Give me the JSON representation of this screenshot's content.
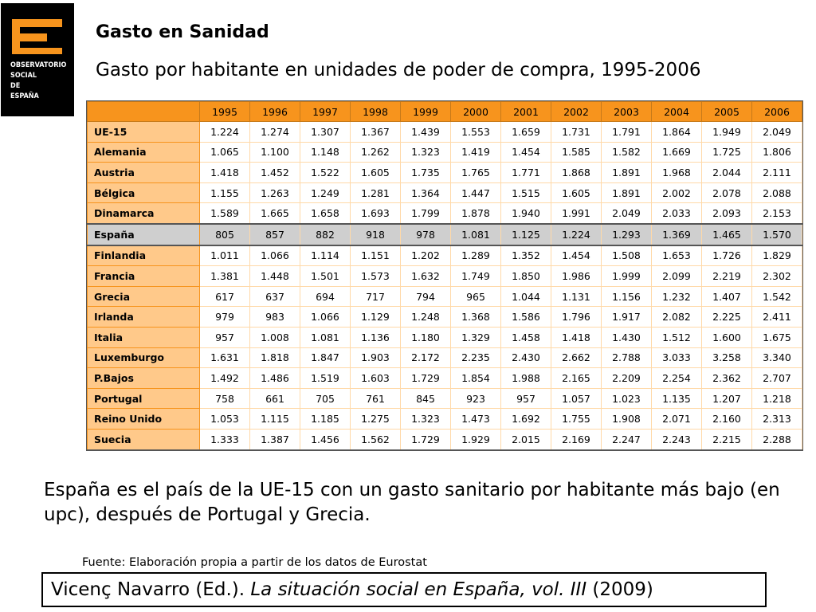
{
  "logo": {
    "lines": [
      "OBSERVATORIO",
      "SOCIAL",
      "DE",
      "ESPAÑA"
    ]
  },
  "title": "Gasto en Sanidad",
  "subtitle": "Gasto por habitante en unidades de poder de compra, 1995-2006",
  "table": {
    "years": [
      "1995",
      "1996",
      "1997",
      "1998",
      "1999",
      "2000",
      "2001",
      "2002",
      "2003",
      "2004",
      "2005",
      "2006"
    ],
    "highlight_country": "España",
    "rows": [
      {
        "country": "UE-15",
        "values": [
          "1.224",
          "1.274",
          "1.307",
          "1.367",
          "1.439",
          "1.553",
          "1.659",
          "1.731",
          "1.791",
          "1.864",
          "1.949",
          "2.049"
        ]
      },
      {
        "country": "Alemania",
        "values": [
          "1.065",
          "1.100",
          "1.148",
          "1.262",
          "1.323",
          "1.419",
          "1.454",
          "1.585",
          "1.582",
          "1.669",
          "1.725",
          "1.806"
        ]
      },
      {
        "country": "Austria",
        "values": [
          "1.418",
          "1.452",
          "1.522",
          "1.605",
          "1.735",
          "1.765",
          "1.771",
          "1.868",
          "1.891",
          "1.968",
          "2.044",
          "2.111"
        ]
      },
      {
        "country": "Bélgica",
        "values": [
          "1.155",
          "1.263",
          "1.249",
          "1.281",
          "1.364",
          "1.447",
          "1.515",
          "1.605",
          "1.891",
          "2.002",
          "2.078",
          "2.088"
        ]
      },
      {
        "country": "Dinamarca",
        "values": [
          "1.589",
          "1.665",
          "1.658",
          "1.693",
          "1.799",
          "1.878",
          "1.940",
          "1.991",
          "2.049",
          "2.033",
          "2.093",
          "2.153"
        ]
      },
      {
        "country": "España",
        "values": [
          "805",
          "857",
          "882",
          "918",
          "978",
          "1.081",
          "1.125",
          "1.224",
          "1.293",
          "1.369",
          "1.465",
          "1.570"
        ]
      },
      {
        "country": "Finlandia",
        "values": [
          "1.011",
          "1.066",
          "1.114",
          "1.151",
          "1.202",
          "1.289",
          "1.352",
          "1.454",
          "1.508",
          "1.653",
          "1.726",
          "1.829"
        ]
      },
      {
        "country": "Francia",
        "values": [
          "1.381",
          "1.448",
          "1.501",
          "1.573",
          "1.632",
          "1.749",
          "1.850",
          "1.986",
          "1.999",
          "2.099",
          "2.219",
          "2.302"
        ]
      },
      {
        "country": "Grecia",
        "values": [
          "617",
          "637",
          "694",
          "717",
          "794",
          "965",
          "1.044",
          "1.131",
          "1.156",
          "1.232",
          "1.407",
          "1.542"
        ]
      },
      {
        "country": "Irlanda",
        "values": [
          "979",
          "983",
          "1.066",
          "1.129",
          "1.248",
          "1.368",
          "1.586",
          "1.796",
          "1.917",
          "2.082",
          "2.225",
          "2.411"
        ]
      },
      {
        "country": "Italia",
        "values": [
          "957",
          "1.008",
          "1.081",
          "1.136",
          "1.180",
          "1.329",
          "1.458",
          "1.418",
          "1.430",
          "1.512",
          "1.600",
          "1.675"
        ]
      },
      {
        "country": "Luxemburgo",
        "values": [
          "1.631",
          "1.818",
          "1.847",
          "1.903",
          "2.172",
          "2.235",
          "2.430",
          "2.662",
          "2.788",
          "3.033",
          "3.258",
          "3.340"
        ]
      },
      {
        "country": "P.Bajos",
        "values": [
          "1.492",
          "1.486",
          "1.519",
          "1.603",
          "1.729",
          "1.854",
          "1.988",
          "2.165",
          "2.209",
          "2.254",
          "2.362",
          "2.707"
        ]
      },
      {
        "country": "Portugal",
        "values": [
          "758",
          "661",
          "705",
          "761",
          "845",
          "923",
          "957",
          "1.057",
          "1.023",
          "1.135",
          "1.207",
          "1.218"
        ]
      },
      {
        "country": "Reino Unido",
        "values": [
          "1.053",
          "1.115",
          "1.185",
          "1.275",
          "1.323",
          "1.473",
          "1.692",
          "1.755",
          "1.908",
          "2.071",
          "2.160",
          "2.313"
        ]
      },
      {
        "country": "Suecia",
        "values": [
          "1.333",
          "1.387",
          "1.456",
          "1.562",
          "1.729",
          "1.929",
          "2.015",
          "2.169",
          "2.247",
          "2.243",
          "2.215",
          "2.288"
        ]
      }
    ]
  },
  "statement": "España es el país de la UE-15 con un gasto sanitario por habitante más bajo (en upc), después de Portugal y Grecia.",
  "source": "Fuente: Elaboración propia a partir de los datos de Eurostat",
  "citation": {
    "author": "Vicenç Navarro (Ed.).",
    "work": "La situación social en España, vol. III",
    "year": "(2009)"
  },
  "colors": {
    "accent": "#f7941d",
    "country_cell": "#ffc98a",
    "highlight_row": "#cfcfcf"
  }
}
